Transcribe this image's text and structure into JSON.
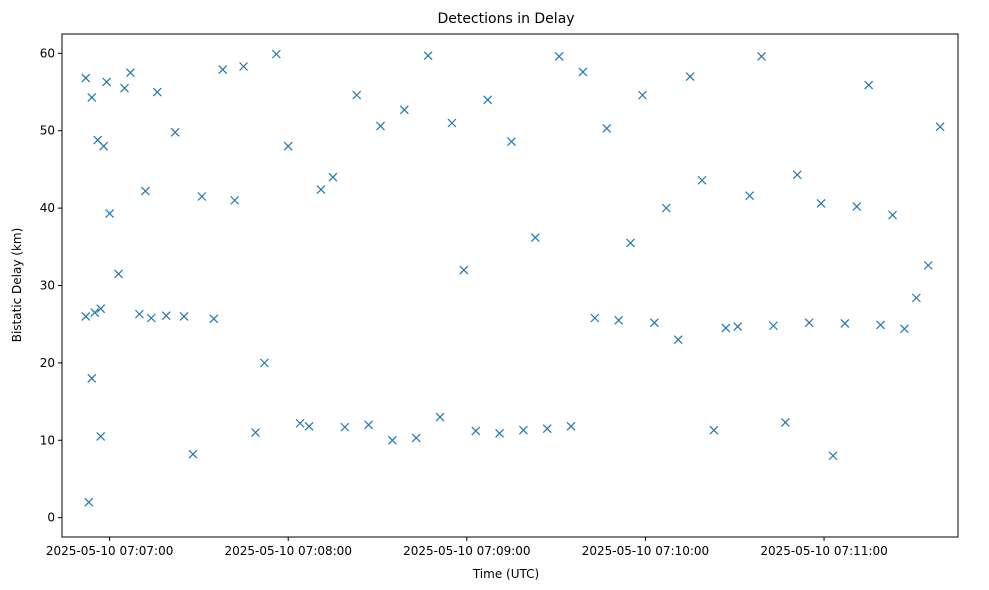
{
  "chart_data": {
    "type": "scatter",
    "title": "Detections in Delay",
    "xlabel": "Time (UTC)",
    "ylabel": "Bistatic Delay (km)",
    "x_axis_type": "datetime",
    "xlim": [
      "2025-05-10 07:06:44",
      "2025-05-10 07:11:45"
    ],
    "ylim": [
      -2.5,
      62.5
    ],
    "x_ticks": [
      "2025-05-10 07:07:00",
      "2025-05-10 07:08:00",
      "2025-05-10 07:09:00",
      "2025-05-10 07:10:00",
      "2025-05-10 07:11:00"
    ],
    "y_ticks": [
      0,
      10,
      20,
      30,
      40,
      50,
      60
    ],
    "grid": false,
    "marker": "x",
    "color": "#1f77b4",
    "series": [
      {
        "x": [
          "2025-05-10 07:06:52",
          "2025-05-10 07:06:52",
          "2025-05-10 07:06:53",
          "2025-05-10 07:06:54",
          "2025-05-10 07:06:54",
          "2025-05-10 07:06:55",
          "2025-05-10 07:06:56",
          "2025-05-10 07:06:57",
          "2025-05-10 07:06:57",
          "2025-05-10 07:06:58",
          "2025-05-10 07:06:59",
          "2025-05-10 07:07:00",
          "2025-05-10 07:07:03",
          "2025-05-10 07:07:05",
          "2025-05-10 07:07:07",
          "2025-05-10 07:07:10",
          "2025-05-10 07:07:12",
          "2025-05-10 07:07:14",
          "2025-05-10 07:07:16",
          "2025-05-10 07:07:19",
          "2025-05-10 07:07:22",
          "2025-05-10 07:07:25",
          "2025-05-10 07:07:28",
          "2025-05-10 07:07:31",
          "2025-05-10 07:07:35",
          "2025-05-10 07:07:38",
          "2025-05-10 07:07:42",
          "2025-05-10 07:07:45",
          "2025-05-10 07:07:49",
          "2025-05-10 07:07:52",
          "2025-05-10 07:07:56",
          "2025-05-10 07:08:00",
          "2025-05-10 07:08:04",
          "2025-05-10 07:08:07",
          "2025-05-10 07:08:11",
          "2025-05-10 07:08:15",
          "2025-05-10 07:08:19",
          "2025-05-10 07:08:23",
          "2025-05-10 07:08:27",
          "2025-05-10 07:08:31",
          "2025-05-10 07:08:35",
          "2025-05-10 07:08:39",
          "2025-05-10 07:08:43",
          "2025-05-10 07:08:47",
          "2025-05-10 07:08:51",
          "2025-05-10 07:08:55",
          "2025-05-10 07:08:59",
          "2025-05-10 07:09:03",
          "2025-05-10 07:09:07",
          "2025-05-10 07:09:11",
          "2025-05-10 07:09:15",
          "2025-05-10 07:09:19",
          "2025-05-10 07:09:23",
          "2025-05-10 07:09:27",
          "2025-05-10 07:09:31",
          "2025-05-10 07:09:35",
          "2025-05-10 07:09:39",
          "2025-05-10 07:09:43",
          "2025-05-10 07:09:47",
          "2025-05-10 07:09:51",
          "2025-05-10 07:09:55",
          "2025-05-10 07:09:59",
          "2025-05-10 07:10:03",
          "2025-05-10 07:10:07",
          "2025-05-10 07:10:11",
          "2025-05-10 07:10:15",
          "2025-05-10 07:10:19",
          "2025-05-10 07:10:23",
          "2025-05-10 07:10:27",
          "2025-05-10 07:10:31",
          "2025-05-10 07:10:35",
          "2025-05-10 07:10:39",
          "2025-05-10 07:10:43",
          "2025-05-10 07:10:47",
          "2025-05-10 07:10:51",
          "2025-05-10 07:10:55",
          "2025-05-10 07:10:59",
          "2025-05-10 07:11:03",
          "2025-05-10 07:11:07",
          "2025-05-10 07:11:11",
          "2025-05-10 07:11:15",
          "2025-05-10 07:11:19",
          "2025-05-10 07:11:23",
          "2025-05-10 07:11:27",
          "2025-05-10 07:11:31",
          "2025-05-10 07:11:35",
          "2025-05-10 07:11:39"
        ],
        "y": [
          26.0,
          56.8,
          2.0,
          54.3,
          18.0,
          26.5,
          48.8,
          10.5,
          27.0,
          48.0,
          56.3,
          39.3,
          31.5,
          55.5,
          57.5,
          26.3,
          42.2,
          25.8,
          55.0,
          26.1,
          49.8,
          26.0,
          8.2,
          41.5,
          25.7,
          57.9,
          41.0,
          58.3,
          11.0,
          20.0,
          59.9,
          48.0,
          12.2,
          11.8,
          42.4,
          44.0,
          11.7,
          54.6,
          12.0,
          50.6,
          10.0,
          52.7,
          10.3,
          59.7,
          13.0,
          51.0,
          32.0,
          11.2,
          54.0,
          10.9,
          48.6,
          11.3,
          36.2,
          11.5,
          59.6,
          11.8,
          57.6,
          25.8,
          50.3,
          25.5,
          35.5,
          54.6,
          25.2,
          40.0,
          23.0,
          57.0,
          43.6,
          11.3,
          24.5,
          24.7,
          41.6,
          59.6,
          24.8,
          12.3,
          44.3,
          25.2,
          40.6,
          8.0,
          25.1,
          40.2,
          55.9,
          24.9,
          39.1,
          24.4,
          28.4,
          32.6,
          50.5
        ]
      }
    ]
  }
}
